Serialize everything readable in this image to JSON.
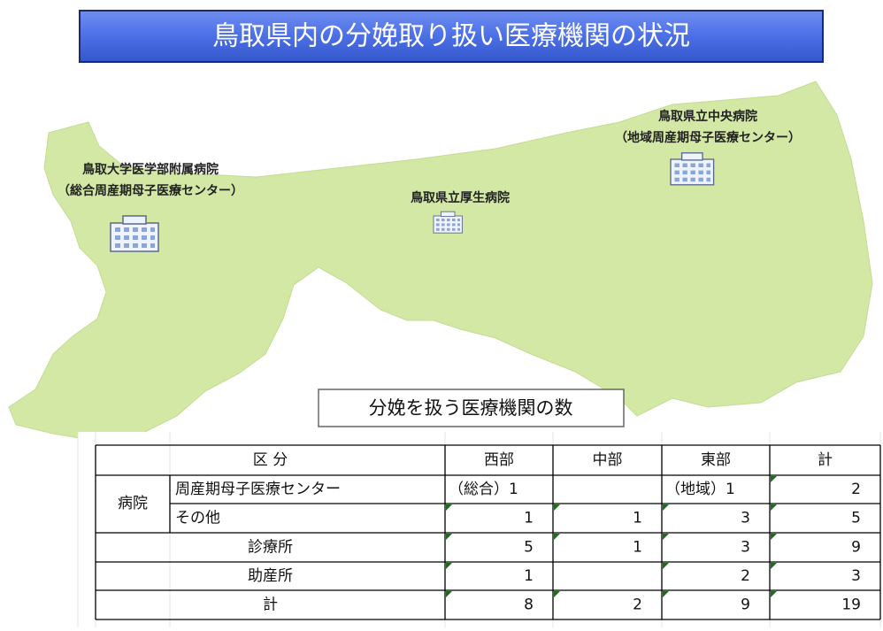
{
  "title": "鳥取県内の分娩取り扱い医療機関の状況",
  "hospitals": [
    {
      "name": "鳥取大学医学部附属病院",
      "note": "（総合周産期母子医療センター）"
    },
    {
      "name": "鳥取県立厚生病院"
    },
    {
      "name": "鳥取県立中央病院",
      "note": "（地域周産期母子医療センター）"
    }
  ],
  "table": {
    "caption": "分娩を扱う医療機関の数",
    "header": [
      "区 分",
      "西部",
      "中部",
      "東部",
      "計"
    ],
    "group": "病院",
    "rows": [
      [
        "周産期母子医療センター",
        "（総合）1",
        null,
        "（地域）1",
        2
      ],
      [
        "その他",
        1,
        1,
        3,
        5
      ],
      [
        "診療所",
        5,
        1,
        3,
        9
      ],
      [
        "助産所",
        1,
        null,
        2,
        3
      ],
      [
        "計",
        8,
        2,
        9,
        19
      ]
    ]
  }
}
